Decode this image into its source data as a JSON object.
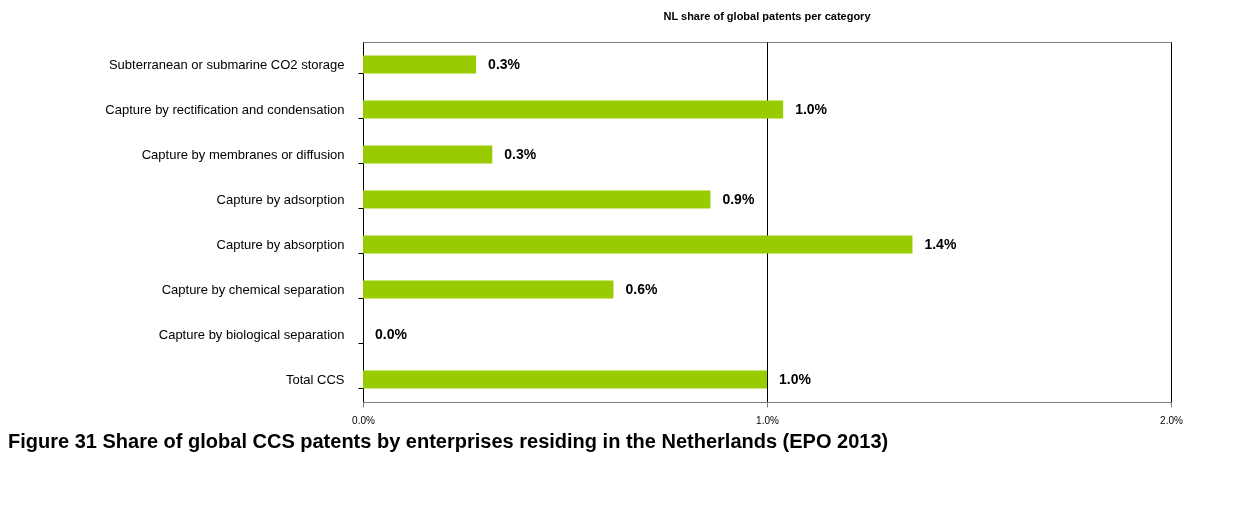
{
  "chart_data": {
    "type": "bar",
    "orientation": "horizontal",
    "title": "NL share of global patents per category",
    "categories": [
      "Subterranean or submarine CO2 storage",
      "Capture by rectification and condensation",
      "Capture by membranes or diffusion",
      "Capture by adsorption",
      "Capture by absorption",
      "Capture by chemical separation",
      "Capture by biological separation",
      "Total CCS"
    ],
    "values": [
      0.28,
      1.04,
      0.32,
      0.86,
      1.36,
      0.62,
      0.0,
      1.0
    ],
    "value_labels": [
      "0.3%",
      "1.0%",
      "0.3%",
      "0.9%",
      "1.4%",
      "0.6%",
      "0.0%",
      "1.0%"
    ],
    "color": "#99cc00",
    "xlim": [
      0,
      2
    ],
    "xticks": [
      {
        "value": 0,
        "label": "0.0%"
      },
      {
        "value": 1,
        "label": "1.0%"
      },
      {
        "value": 2,
        "label": "2.0%"
      }
    ],
    "grid": "x",
    "annotations": [
      "Figure 31 Share of global CCS patents by enterprises residing in the Netherlands  (EPO 2013)"
    ]
  }
}
